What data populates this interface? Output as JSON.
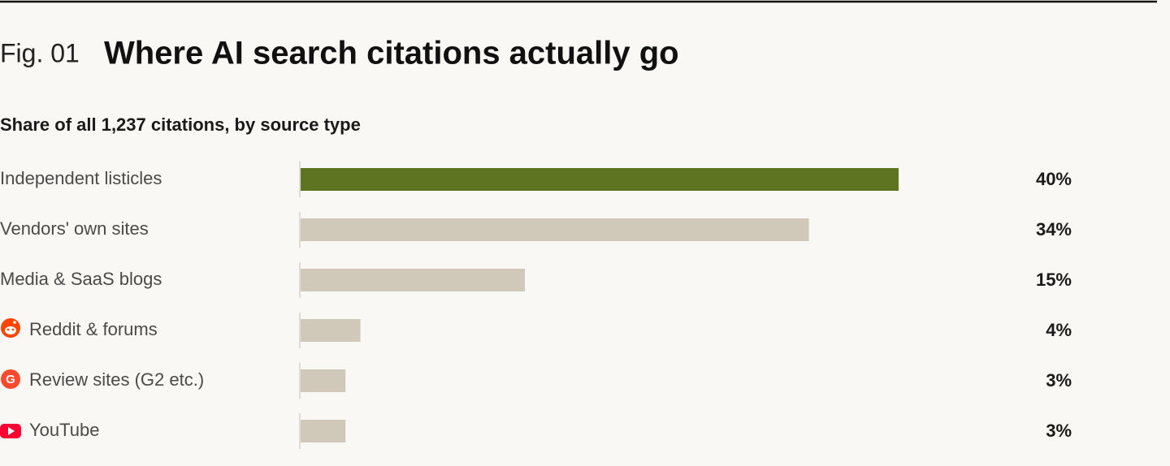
{
  "chart_data": {
    "type": "bar",
    "orientation": "horizontal",
    "figure_label": "Fig. 01",
    "title": "Where AI search citations actually go",
    "subtitle": "Share of all 1,237 citations, by source type",
    "categories": [
      "Independent listicles",
      "Vendors' own sites",
      "Media & SaaS blogs",
      "Reddit & forums",
      "Review sites (G2 etc.)",
      "YouTube"
    ],
    "values": [
      40,
      34,
      15,
      4,
      3,
      3
    ],
    "value_labels": [
      "40%",
      "34%",
      "15%",
      "4%",
      "3%",
      "3%"
    ],
    "colors": [
      "#5f7420",
      "#d0c8b8",
      "#d0c8b8",
      "#d0c8b8",
      "#d0c8b8",
      "#d0c8b8"
    ]
  }
}
